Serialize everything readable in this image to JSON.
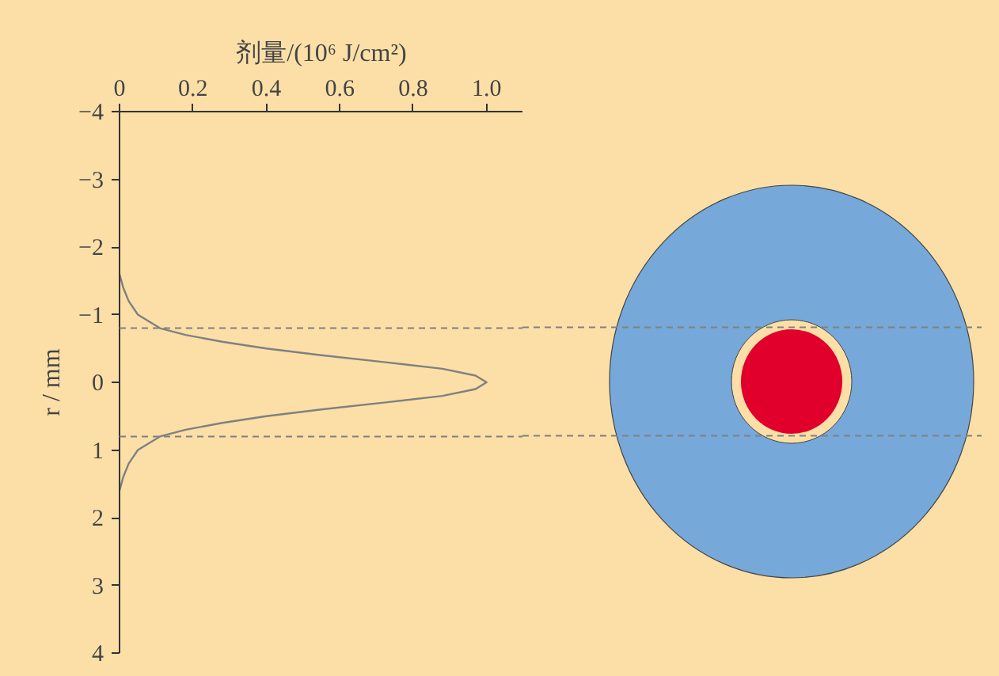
{
  "chart_data": {
    "type": "line",
    "xlabel": "剂量/(10⁶ J/cm²)",
    "ylabel": "r / mm",
    "series": [
      {
        "color": "#808080",
        "x": [
          0,
          0.01,
          0.025,
          0.05,
          0.11,
          0.18,
          0.28,
          0.4,
          0.55,
          0.72,
          0.88,
          0.97,
          1.0,
          0.97,
          0.88,
          0.72,
          0.55,
          0.4,
          0.28,
          0.18,
          0.11,
          0.05,
          0.025,
          0.01,
          0
        ],
        "values": [
          -1.6,
          -1.4,
          -1.2,
          -1.0,
          -0.8,
          -0.7,
          -0.6,
          -0.5,
          -0.4,
          -0.3,
          -0.2,
          -0.1,
          0,
          0.1,
          0.2,
          0.3,
          0.4,
          0.5,
          0.6,
          0.7,
          0.8,
          1.0,
          1.2,
          1.4,
          1.6
        ]
      }
    ],
    "xlim": [
      0,
      1.1
    ],
    "ylim": [
      4,
      -4
    ],
    "xticks": [
      0,
      0.2,
      0.4,
      0.6,
      0.8,
      {
        "value": 1,
        "label": "1.0"
      }
    ],
    "yticks": [
      -4,
      -3,
      -2,
      -1,
      0,
      1,
      2,
      3,
      4
    ],
    "ref_lines": [
      {
        "axis": "y",
        "value": -0.8,
        "color": "#808080",
        "line_style": "dashed"
      },
      {
        "axis": "y",
        "value": 0.8,
        "color": "#808080",
        "line_style": "dashed"
      }
    ]
  }
}
